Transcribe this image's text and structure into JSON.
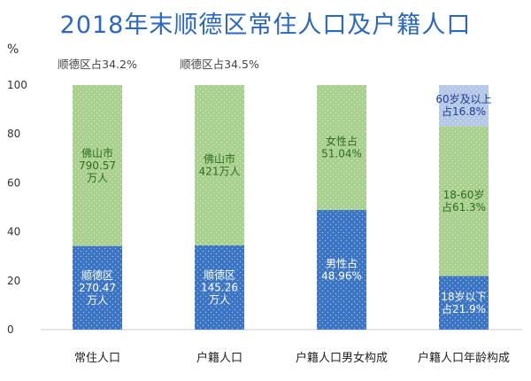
{
  "chart_data": {
    "type": "bar",
    "stacked": true,
    "title": "2018年末顺德区常住人口及户籍人口",
    "ylabel": "%",
    "ylim": [
      0,
      100
    ],
    "yticks": [
      0,
      20,
      40,
      60,
      80,
      100
    ],
    "categories": [
      "常住人口",
      "户籍人口",
      "户籍人口男女构成",
      "户籍人口年龄构成"
    ],
    "top_notes": [
      "顺德区占34.2%",
      "顺德区占34.5%",
      "",
      ""
    ],
    "bars": [
      {
        "segments": [
          {
            "value": 34.2,
            "label": [
              "顺德区",
              "270.47",
              "万人"
            ],
            "color": "#3a74c3",
            "text_color": "#ffffff"
          },
          {
            "value": 65.8,
            "label": [
              "佛山市",
              "790.57",
              "万人"
            ],
            "color": "#a9d08e",
            "text_color": "#2e6e1e"
          }
        ]
      },
      {
        "segments": [
          {
            "value": 34.5,
            "label": [
              "顺德区",
              "145.26",
              "万人"
            ],
            "color": "#3a74c3",
            "text_color": "#ffffff"
          },
          {
            "value": 65.5,
            "label": [
              "佛山市",
              "421万人"
            ],
            "color": "#a9d08e",
            "text_color": "#2e6e1e"
          }
        ]
      },
      {
        "segments": [
          {
            "value": 48.96,
            "label": [
              "男性占",
              "48.96%"
            ],
            "color": "#3a74c3",
            "text_color": "#ffffff"
          },
          {
            "value": 51.04,
            "label": [
              "女性占",
              "51.04%"
            ],
            "color": "#a9d08e",
            "text_color": "#2e6e1e"
          }
        ]
      },
      {
        "segments": [
          {
            "value": 21.9,
            "label": [
              "18岁以下",
              "占21.9%"
            ],
            "color": "#3a74c3",
            "text_color": "#ffffff"
          },
          {
            "value": 61.3,
            "label": [
              "18-60岁",
              "占61.3%"
            ],
            "color": "#a9d08e",
            "text_color": "#2e6e1e"
          },
          {
            "value": 16.8,
            "label": [
              "60岁及以上",
              "占16.8%"
            ],
            "color": "#b4c7e7",
            "text_color": "#1f3f8f"
          }
        ]
      }
    ],
    "grid": false,
    "legend": "none"
  }
}
